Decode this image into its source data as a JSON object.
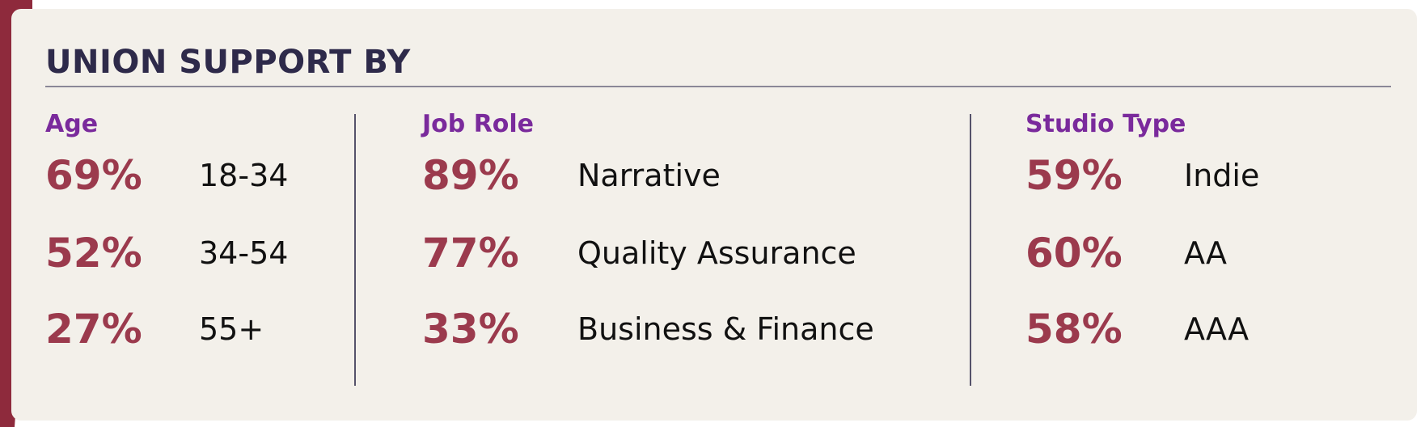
{
  "title": "UNION SUPPORT BY",
  "sections": [
    {
      "heading": "Age",
      "items": [
        {
          "value": "69%",
          "label": "18-34"
        },
        {
          "value": "52%",
          "label": "34-54"
        },
        {
          "value": "27%",
          "label": "55+"
        }
      ]
    },
    {
      "heading": "Job Role",
      "items": [
        {
          "value": "89%",
          "label": "Narrative"
        },
        {
          "value": "77%",
          "label": "Quality Assurance"
        },
        {
          "value": "33%",
          "label": "Business & Finance"
        }
      ]
    },
    {
      "heading": "Studio Type",
      "items": [
        {
          "value": "59%",
          "label": "Indie"
        },
        {
          "value": "60%",
          "label": "AA"
        },
        {
          "value": "58%",
          "label": "AAA"
        }
      ]
    }
  ]
}
